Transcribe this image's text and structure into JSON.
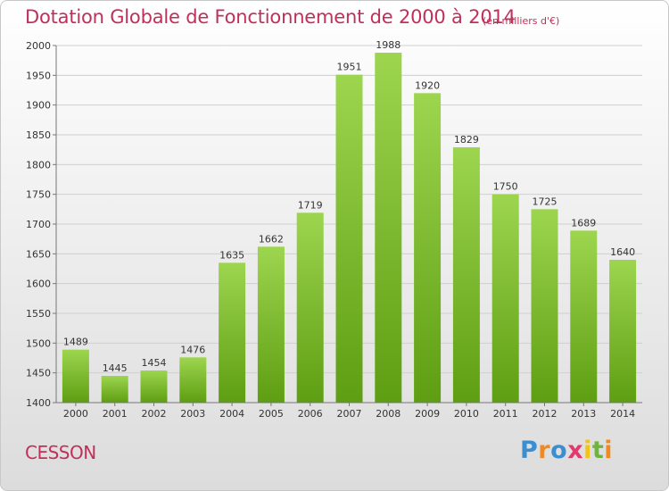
{
  "chart_data": {
    "type": "bar",
    "title": "Dotation Globale de Fonctionnement de 2000 à 2014",
    "subtitle": "(en milliers d'€)",
    "categories": [
      "2000",
      "2001",
      "2002",
      "2003",
      "2004",
      "2005",
      "2006",
      "2007",
      "2008",
      "2009",
      "2010",
      "2011",
      "2012",
      "2013",
      "2014"
    ],
    "values": [
      1489,
      1445,
      1454,
      1476,
      1635,
      1662,
      1719,
      1951,
      1988,
      1920,
      1829,
      1750,
      1725,
      1689,
      1640
    ],
    "ylim": [
      1400,
      2000
    ],
    "yticks": [
      1400,
      1450,
      1500,
      1550,
      1600,
      1650,
      1700,
      1750,
      1800,
      1850,
      1900,
      1950,
      2000
    ],
    "grid": true,
    "bar_color_top": "#9dd54f",
    "bar_color_bottom": "#5e9e12"
  },
  "commune": "CESSON",
  "logo": {
    "letters": [
      "P",
      "r",
      "o",
      "x",
      "i",
      "t",
      "i"
    ],
    "colors": [
      "#3b8ed0",
      "#f08a1c",
      "#3b8ed0",
      "#e23a6e",
      "#f0c419",
      "#6fb43f",
      "#f08a1c"
    ]
  }
}
